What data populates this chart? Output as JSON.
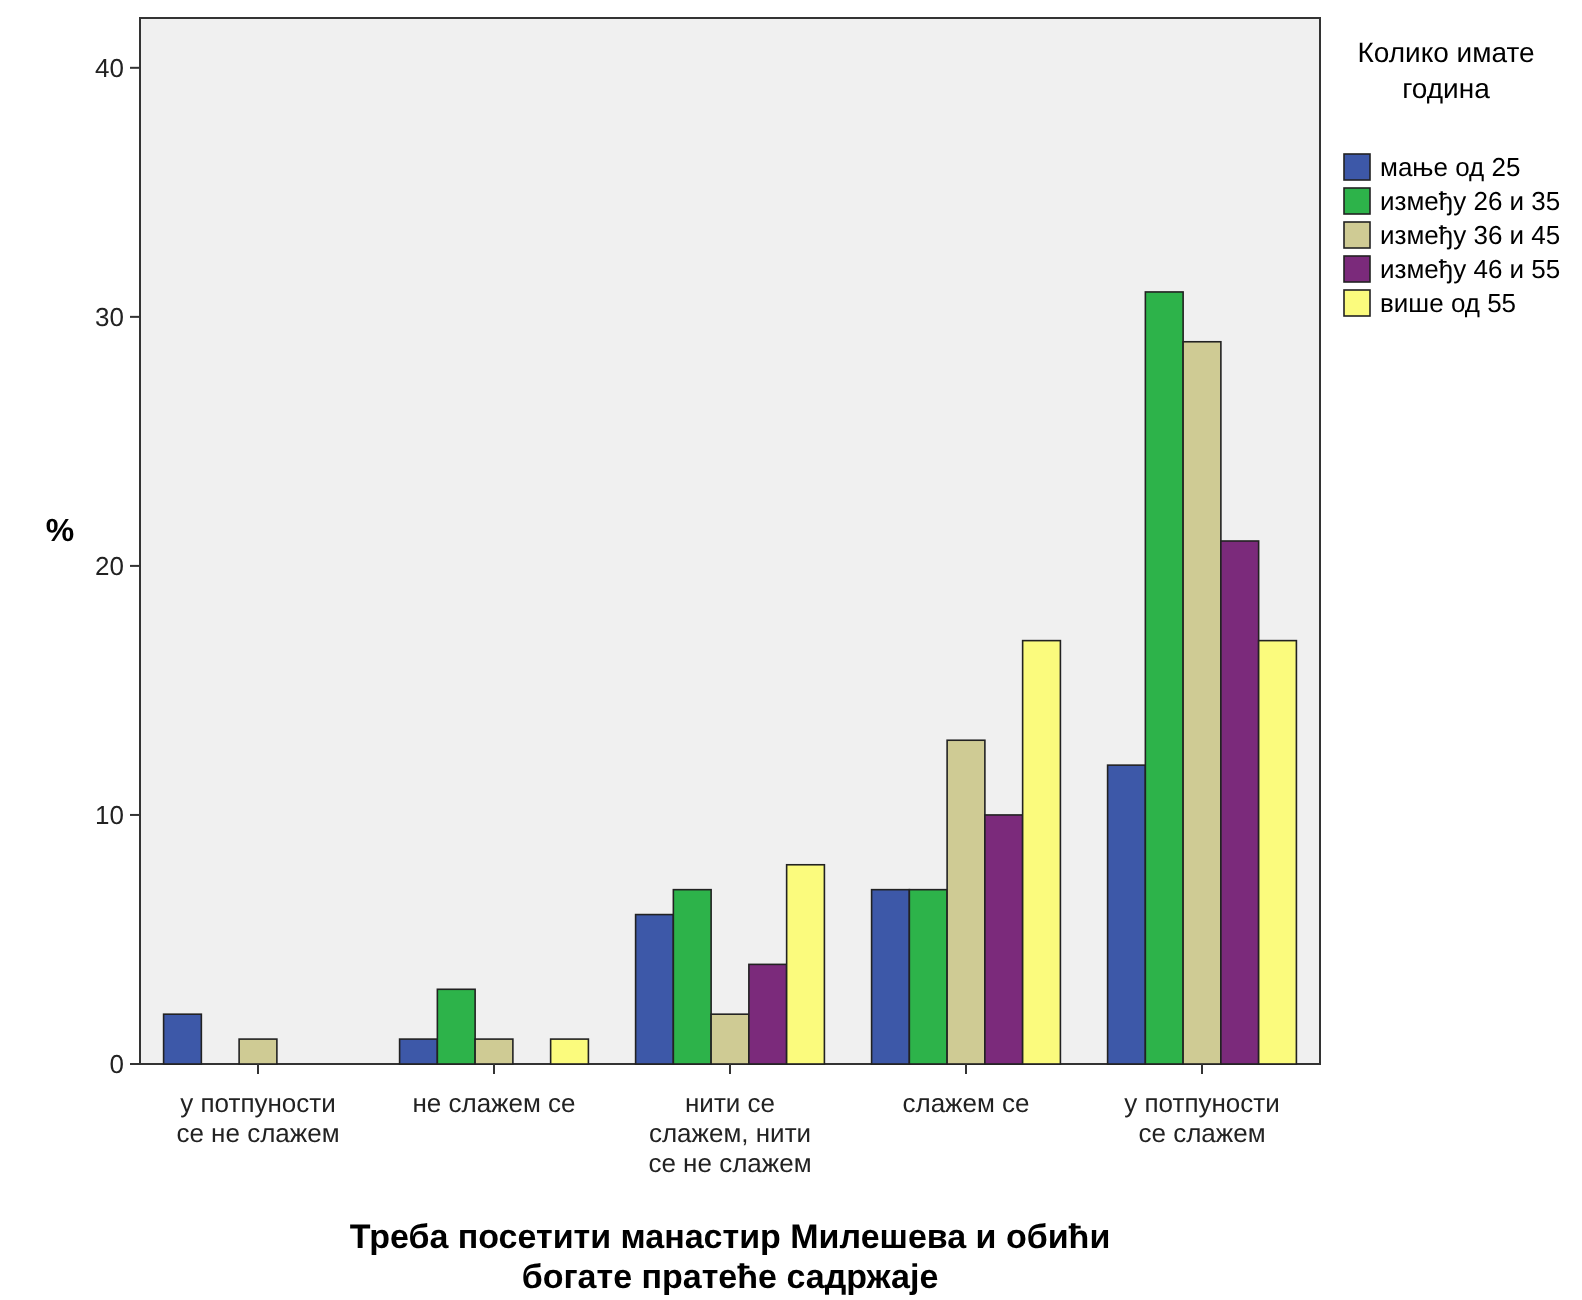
{
  "chart_data": {
    "type": "bar",
    "title": "Треба посетити манастир Милешева и обићи богате пратеће садржаје",
    "ylabel": "%",
    "legend_title": "Колико имате година",
    "legend": "right",
    "grid": false,
    "categories": [
      "у потпуности се не слажем",
      "не слажем се",
      "нити се слажем, нити се не слажем",
      "слажем се",
      "у потпуности се слажем"
    ],
    "ylim": [
      0,
      42
    ],
    "yticks": [
      0,
      10,
      20,
      30,
      40
    ],
    "series": [
      {
        "name": "мање од 25",
        "color": "#3d58a8",
        "values": [
          2,
          1,
          6,
          7,
          12
        ]
      },
      {
        "name": "између 26 и 35",
        "color": "#2db34a",
        "values": [
          null,
          3,
          7,
          7,
          31
        ]
      },
      {
        "name": "између 36 и 45",
        "color": "#cfcb94",
        "values": [
          1,
          1,
          2,
          13,
          29
        ]
      },
      {
        "name": "између 46 и 55",
        "color": "#7b2a7b",
        "values": [
          null,
          null,
          4,
          10,
          21
        ]
      },
      {
        "name": "више од 55",
        "color": "#fbfb7d",
        "values": [
          null,
          1,
          8,
          17,
          17
        ]
      }
    ]
  }
}
